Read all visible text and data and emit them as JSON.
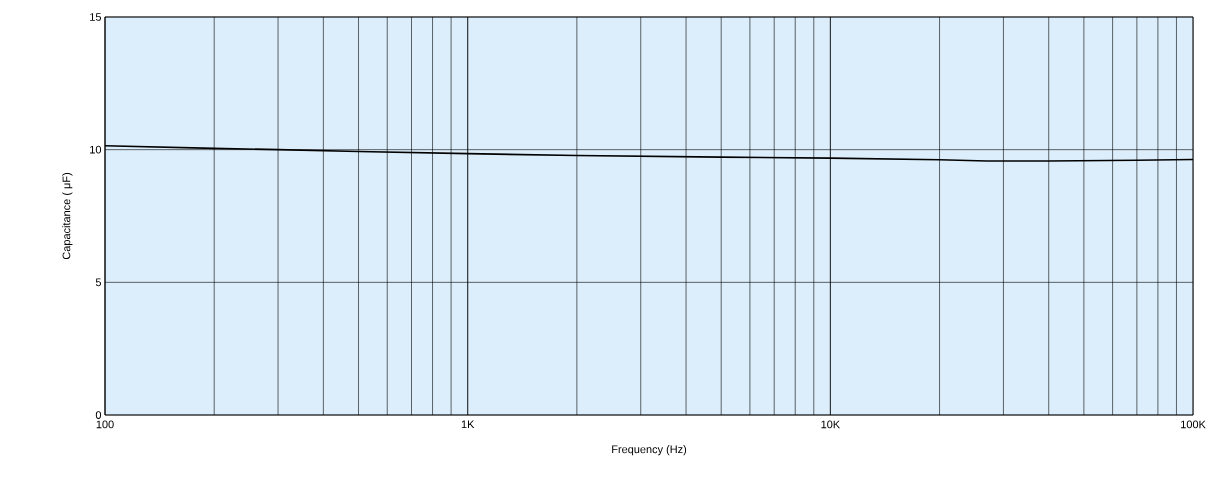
{
  "chart_data": {
    "type": "line",
    "xlabel": "Frequency (Hz)",
    "ylabel": "Capacitance ( μF)",
    "log": "x",
    "grid": true,
    "x": [
      100,
      200,
      300,
      500,
      1000,
      2000,
      5000,
      10000,
      20000,
      27000,
      40000,
      70000,
      100000
    ],
    "series": [
      {
        "color": "#000000",
        "values": [
          10.15,
          10.05,
          10.0,
          9.93,
          9.85,
          9.78,
          9.72,
          9.68,
          9.62,
          9.57,
          9.57,
          9.6,
          9.63
        ]
      }
    ],
    "xlim": [
      100,
      100000
    ],
    "ylim": [
      0,
      15
    ],
    "xticks": [
      100,
      {
        "value": 1000,
        "label": "1K"
      },
      {
        "value": 10000,
        "label": "10K"
      },
      {
        "value": 100000,
        "label": "100K"
      }
    ],
    "yticks": [
      0,
      5,
      10,
      15
    ]
  }
}
